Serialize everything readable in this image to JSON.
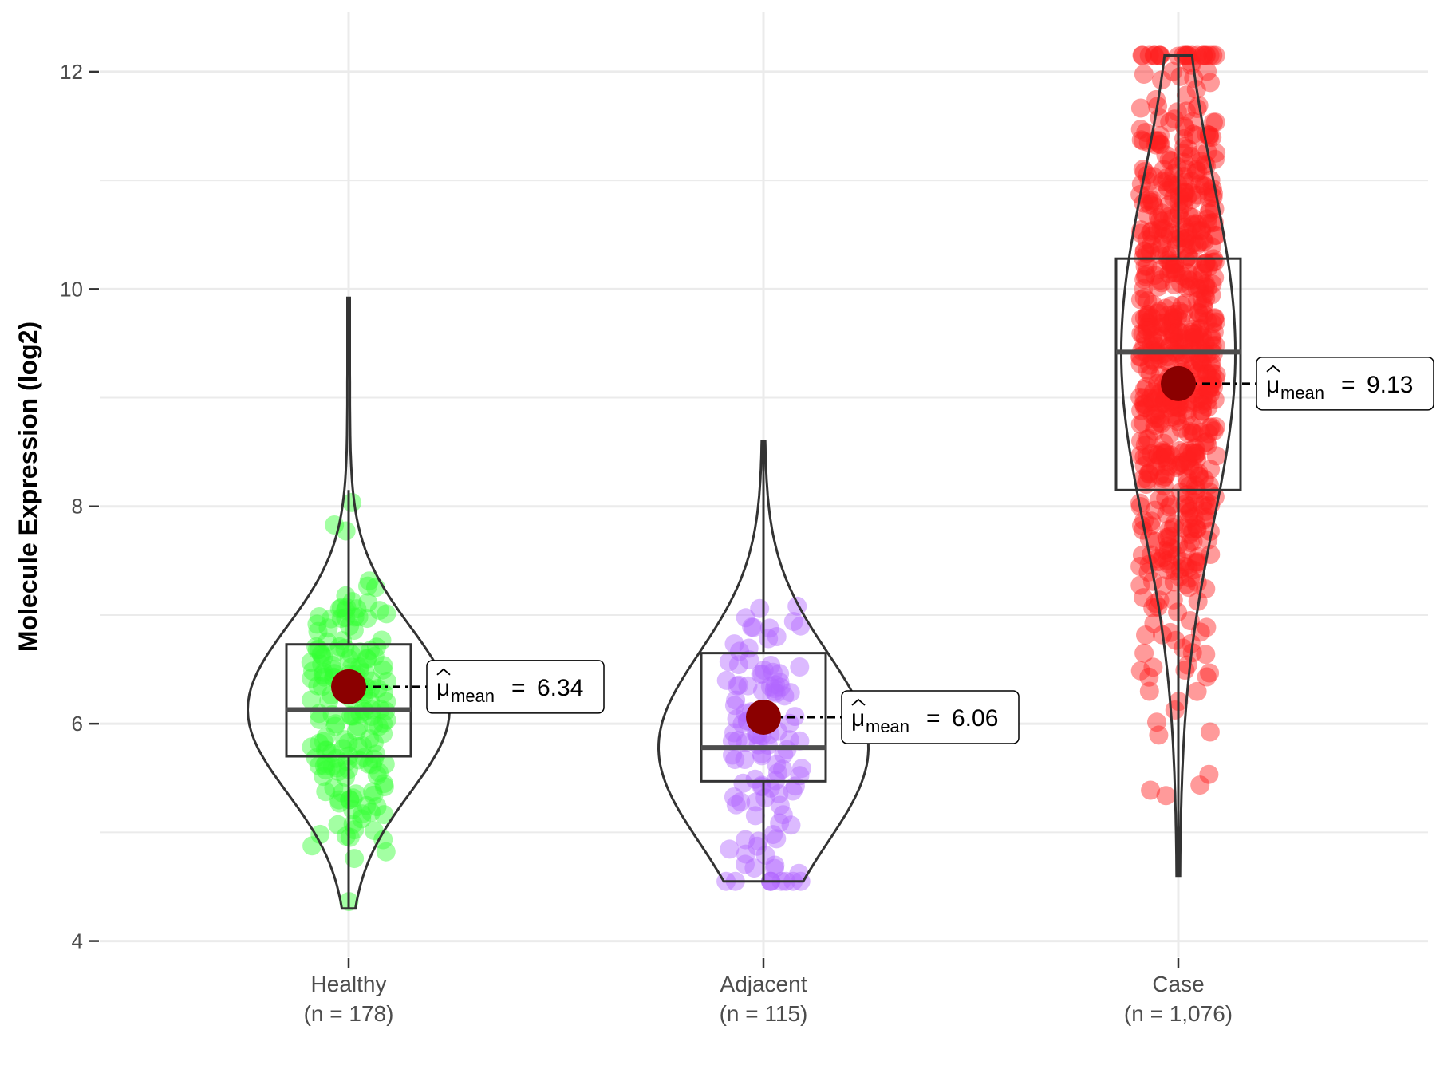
{
  "chart_data": {
    "type": "violin-box-jitter",
    "title": "",
    "xlabel": "",
    "ylabel": "Molecule Expression (log2)",
    "ylim": [
      3.85,
      12.55
    ],
    "yticks": [
      4,
      6,
      8,
      10,
      12
    ],
    "grid": true,
    "groups": [
      {
        "name": "Healthy",
        "n_label": "(n = 178)",
        "n": 178,
        "color": "#33ff33",
        "min": 4.3,
        "q1": 5.7,
        "median": 6.13,
        "q3": 6.73,
        "max": 9.92,
        "whisker_low": 4.3,
        "whisker_high": 8.15,
        "mean": 6.34,
        "mean_label": "6.34"
      },
      {
        "name": "Adjacent",
        "n_label": "(n = 115)",
        "n": 115,
        "color": "#b266ff",
        "min": 4.55,
        "q1": 5.47,
        "median": 5.78,
        "q3": 6.65,
        "max": 8.6,
        "whisker_low": 4.55,
        "whisker_high": 8.6,
        "mean": 6.06,
        "mean_label": "6.06"
      },
      {
        "name": "Case",
        "n_label": "(n = 1,076)",
        "n": 1076,
        "color": "#ff2020",
        "min": 4.6,
        "q1": 8.15,
        "median": 9.42,
        "q3": 10.28,
        "max": 12.15,
        "whisker_low": 4.6,
        "whisker_high": 12.15,
        "mean": 9.13,
        "mean_label": "9.13"
      }
    ],
    "mean_symbol": "μ",
    "mean_subscript": "mean",
    "mean_point_color": "#8b0000"
  }
}
